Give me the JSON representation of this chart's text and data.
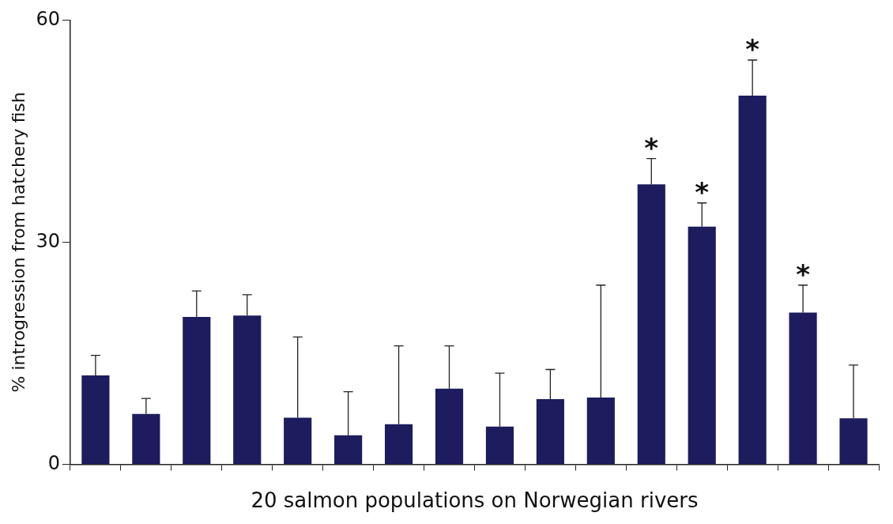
{
  "chart_data": {
    "type": "bar",
    "xlabel": "20 salmon populations on Norwegian rivers",
    "ylabel": "% introgression from hatchery fish",
    "categories": [
      null,
      null,
      null,
      null,
      null,
      null,
      null,
      null,
      null,
      null,
      null,
      null,
      null,
      null,
      null,
      null
    ],
    "values": [
      12.0,
      6.8,
      19.9,
      20.1,
      6.3,
      3.9,
      5.4,
      10.2,
      5.1,
      8.8,
      9.0,
      37.8,
      32.1,
      49.8,
      20.5,
      6.2
    ],
    "errors": [
      [
        12.0,
        14.7
      ],
      [
        6.8,
        8.9
      ],
      [
        19.9,
        23.4
      ],
      [
        20.1,
        22.9
      ],
      [
        6.3,
        17.2
      ],
      [
        3.9,
        9.8
      ],
      [
        5.4,
        16.0
      ],
      [
        10.2,
        16.0
      ],
      [
        5.1,
        12.3
      ],
      [
        8.8,
        12.8
      ],
      [
        9.0,
        24.2
      ],
      [
        37.8,
        41.3
      ],
      [
        32.1,
        35.3
      ],
      [
        49.8,
        54.6
      ],
      [
        20.5,
        24.2
      ],
      [
        6.2,
        13.4
      ]
    ],
    "value_labels": [
      null,
      null,
      null,
      null,
      null,
      null,
      null,
      null,
      null,
      null,
      null,
      "*",
      "*",
      "*",
      "*",
      null
    ],
    "color": "#1c1c5e",
    "ylim": [
      0,
      60
    ],
    "yticks": [
      0,
      30,
      60
    ],
    "grid": false,
    "legend": false
  }
}
